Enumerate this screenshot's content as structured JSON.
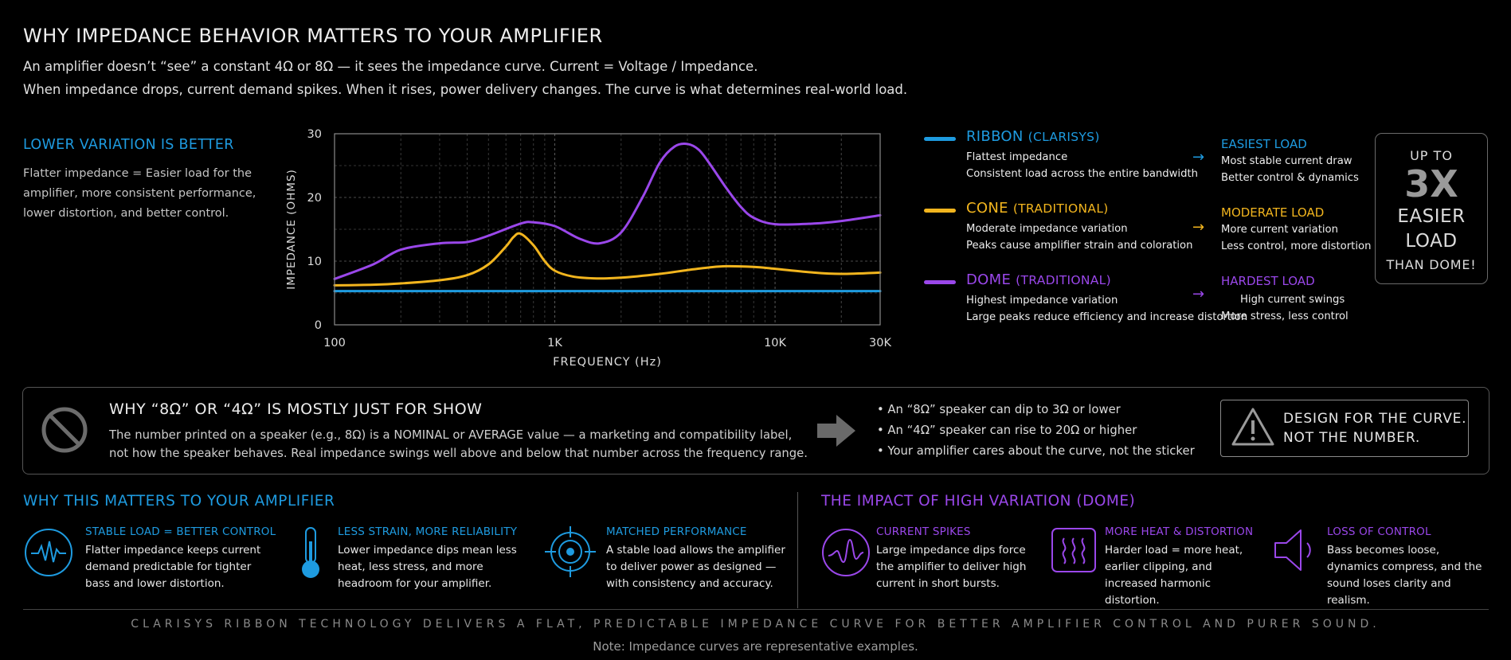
{
  "header": {
    "title": "WHY IMPEDANCE BEHAVIOR MATTERS TO YOUR AMPLIFIER",
    "line1": "An amplifier doesn’t “see” a constant 4Ω or 8Ω — it sees the impedance curve. Current = Voltage / Impedance.",
    "line2": "When impedance drops, current demand spikes. When it rises, power delivery changes. The curve is what determines real-world load."
  },
  "left_note": {
    "heading": "LOWER VARIATION IS BETTER",
    "body": "Flatter impedance = Easier load for the amplifier, more consistent performance, lower distortion, and better control."
  },
  "chart_data": {
    "type": "line",
    "xlabel": "FREQUENCY (Hz)",
    "ylabel": "IMPEDANCE (OHMS)",
    "x_scale": "log",
    "xlim": [
      100,
      30000
    ],
    "ylim": [
      0,
      30
    ],
    "x_ticks": [
      100,
      1000,
      10000,
      30000
    ],
    "x_tick_labels": [
      "100",
      "1K",
      "10K",
      "30K"
    ],
    "y_ticks": [
      0,
      10,
      20,
      30
    ],
    "y_tick_labels": [
      "0",
      "10",
      "20",
      "30"
    ],
    "grid": true,
    "series": [
      {
        "name": "RIBBON (CLARISYS)",
        "color": "#1e9be0",
        "x": [
          100,
          200,
          500,
          1000,
          2000,
          5000,
          10000,
          20000,
          30000
        ],
        "y": [
          5.3,
          5.3,
          5.3,
          5.3,
          5.3,
          5.3,
          5.3,
          5.3,
          5.3
        ]
      },
      {
        "name": "CONE (TRADITIONAL)",
        "color": "#f2b51e",
        "x": [
          100,
          150,
          200,
          300,
          400,
          500,
          600,
          650,
          700,
          800,
          900,
          1000,
          1200,
          1500,
          2000,
          3000,
          4000,
          5000,
          6000,
          8000,
          10000,
          15000,
          20000,
          30000
        ],
        "y": [
          6.2,
          6.3,
          6.5,
          7.0,
          7.8,
          9.5,
          12.3,
          13.8,
          14.3,
          12.5,
          10.0,
          8.5,
          7.6,
          7.3,
          7.4,
          8.0,
          8.6,
          9.0,
          9.2,
          9.1,
          8.8,
          8.2,
          8.0,
          8.2
        ]
      },
      {
        "name": "DOME (TRADITIONAL)",
        "color": "#9a47ea",
        "x": [
          100,
          150,
          200,
          300,
          400,
          500,
          700,
          800,
          1000,
          1300,
          1600,
          2000,
          2500,
          3000,
          3500,
          4000,
          4500,
          5000,
          6000,
          7000,
          8000,
          10000,
          15000,
          20000,
          30000
        ],
        "y": [
          7.2,
          9.5,
          11.8,
          12.8,
          13.0,
          14.0,
          15.9,
          16.1,
          15.5,
          13.5,
          12.8,
          14.5,
          20.0,
          25.5,
          28.0,
          28.4,
          27.5,
          25.5,
          21.5,
          18.5,
          16.8,
          15.8,
          15.9,
          16.3,
          17.2
        ]
      }
    ]
  },
  "legend": [
    {
      "name": "RIBBON",
      "sub": "(CLARISYS)",
      "color": "#1e9be0",
      "desc1": "Flattest impedance",
      "desc2": "Consistent load across the entire bandwidth",
      "load_title": "EASIEST LOAD",
      "load1": "Most stable current draw",
      "load2": "Better control & dynamics"
    },
    {
      "name": "CONE",
      "sub": "(TRADITIONAL)",
      "color": "#f2b51e",
      "desc1": "Moderate impedance variation",
      "desc2": "Peaks cause amplifier strain and coloration",
      "load_title": "MODERATE LOAD",
      "load1": "More current variation",
      "load2": "Less control, more distortion"
    },
    {
      "name": "DOME",
      "sub": "(TRADITIONAL)",
      "color": "#9a47ea",
      "desc1": "Highest impedance variation",
      "desc2": "Large peaks reduce efficiency and increase distortion",
      "load_title": "HARDEST LOAD",
      "load1": "High current swings",
      "load2": "More stress, less control"
    }
  ],
  "arrow_glyph": "→",
  "badge": {
    "line1": "UP TO",
    "line2": "3X",
    "line3": "EASIER",
    "line4": "LOAD",
    "line5": "THAN DOME!"
  },
  "show_panel": {
    "title": "WHY “8Ω” OR “4Ω” IS MOSTLY JUST FOR SHOW",
    "body": "The number printed on a speaker (e.g., 8Ω) is a NOMINAL or AVERAGE value — a marketing and compatibility label, not how the speaker behaves. Real impedance swings well above and below that number across the frequency range.",
    "bullets": [
      "• An “8Ω” speaker can dip to 3Ω or lower",
      "• An “4Ω” speaker can rise to 20Ω or higher",
      "• Your amplifier cares about the curve, not the sticker"
    ],
    "warning1": "DESIGN FOR THE CURVE.",
    "warning2": "NOT THE NUMBER."
  },
  "matters": {
    "heading": "WHY THIS MATTERS TO YOUR AMPLIFIER",
    "items": [
      {
        "icon": "waveform-icon",
        "title": "STABLE LOAD = BETTER CONTROL",
        "desc": "Flatter impedance keeps current demand predictable for tighter bass and lower distortion."
      },
      {
        "icon": "thermometer-icon",
        "title": "LESS STRAIN, MORE RELIABILITY",
        "desc": "Lower impedance dips mean less heat, less stress, and more headroom for your amplifier."
      },
      {
        "icon": "target-icon",
        "title": "MATCHED PERFORMANCE",
        "desc": "A stable load allows the amplifier to deliver power as designed — with consistency and accuracy."
      }
    ]
  },
  "impact": {
    "heading": "THE IMPACT OF HIGH VARIATION (DOME)",
    "items": [
      {
        "icon": "spike-waveform-icon",
        "title": "CURRENT SPIKES",
        "desc": "Large impedance dips force the amplifier to deliver high current in short bursts."
      },
      {
        "icon": "heat-icon",
        "title": "MORE HEAT & DISTORTION",
        "desc": "Harder load = more heat, earlier clipping, and increased harmonic distortion."
      },
      {
        "icon": "speaker-icon",
        "title": "LOSS OF CONTROL",
        "desc": "Bass becomes loose, dynamics compress, and the sound loses clarity and realism."
      }
    ]
  },
  "footer": {
    "main": "CLARISYS RIBBON TECHNOLOGY DELIVERS A FLAT, PREDICTABLE IMPEDANCE CURVE FOR BETTER AMPLIFIER CONTROL AND PURER SOUND.",
    "note": "Note: Impedance curves are representative examples."
  }
}
